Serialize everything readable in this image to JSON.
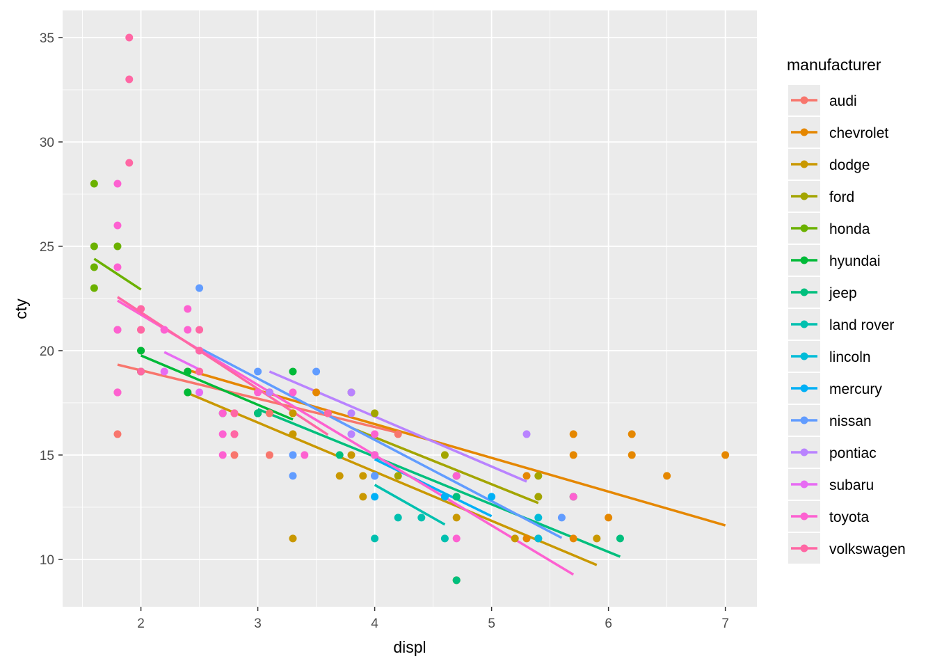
{
  "chart_data": {
    "type": "scatter",
    "title": "",
    "xlabel": "displ",
    "ylabel": "cty",
    "xlim": [
      1.33,
      7.27
    ],
    "ylim": [
      7.73,
      36.3
    ],
    "xticks": [
      2,
      3,
      4,
      5,
      6,
      7
    ],
    "yticks": [
      10,
      15,
      20,
      25,
      30,
      35
    ],
    "grid": true,
    "legend_title": "manufacturer",
    "legend_position": "right",
    "series": [
      {
        "name": "audi",
        "color": "#F8766D",
        "points": [
          [
            1.8,
            18
          ],
          [
            1.8,
            21
          ],
          [
            2.0,
            20
          ],
          [
            2.0,
            21
          ],
          [
            2.8,
            16
          ],
          [
            3.1,
            18
          ],
          [
            1.8,
            16
          ],
          [
            2.0,
            19
          ],
          [
            2.8,
            15
          ],
          [
            2.8,
            17
          ],
          [
            3.1,
            17
          ],
          [
            3.1,
            15
          ],
          [
            4.2,
            16
          ]
        ],
        "fit": [
          [
            1.8,
            19.33
          ],
          [
            4.2,
            16.07
          ]
        ]
      },
      {
        "name": "chevrolet",
        "color": "#E58700",
        "points": [
          [
            5.3,
            14
          ],
          [
            5.3,
            11
          ],
          [
            5.7,
            13
          ],
          [
            6.5,
            14
          ],
          [
            5.7,
            16
          ],
          [
            6.2,
            15
          ],
          [
            6.2,
            16
          ],
          [
            7.0,
            15
          ],
          [
            5.7,
            15
          ],
          [
            6.0,
            12
          ],
          [
            5.7,
            11
          ],
          [
            2.4,
            19
          ],
          [
            3.1,
            18
          ],
          [
            3.5,
            18
          ],
          [
            3.6,
            17
          ]
        ],
        "fit": [
          [
            2.4,
            19.07
          ],
          [
            7.0,
            11.63
          ]
        ]
      },
      {
        "name": "dodge",
        "color": "#C99800",
        "points": [
          [
            2.4,
            18
          ],
          [
            3.0,
            17
          ],
          [
            3.3,
            16
          ],
          [
            3.3,
            17
          ],
          [
            3.8,
            15
          ],
          [
            4.0,
            15
          ],
          [
            3.3,
            11
          ],
          [
            3.7,
            14
          ],
          [
            3.9,
            13
          ],
          [
            3.9,
            14
          ],
          [
            4.7,
            14
          ],
          [
            4.7,
            13
          ],
          [
            4.7,
            12
          ],
          [
            5.2,
            11
          ],
          [
            5.9,
            11
          ],
          [
            4.7,
            9
          ]
        ],
        "fit": [
          [
            2.4,
            17.97
          ],
          [
            5.9,
            9.73
          ]
        ]
      },
      {
        "name": "ford",
        "color": "#A3A500",
        "points": [
          [
            4.0,
            17
          ],
          [
            4.2,
            14
          ],
          [
            4.6,
            15
          ],
          [
            5.4,
            13
          ],
          [
            5.4,
            14
          ],
          [
            4.6,
            13
          ],
          [
            5.4,
            11
          ],
          [
            3.8,
            18
          ]
        ],
        "fit": [
          [
            3.8,
            16.3
          ],
          [
            5.4,
            12.7
          ]
        ]
      },
      {
        "name": "honda",
        "color": "#6BB100",
        "points": [
          [
            1.6,
            28
          ],
          [
            1.6,
            24
          ],
          [
            1.6,
            25
          ],
          [
            1.6,
            23
          ],
          [
            1.8,
            25
          ]
        ],
        "fit": [
          [
            1.6,
            24.4
          ],
          [
            2.0,
            22.93
          ]
        ]
      },
      {
        "name": "hyundai",
        "color": "#00BA38",
        "points": [
          [
            2.0,
            20
          ],
          [
            2.4,
            18
          ],
          [
            2.4,
            19
          ],
          [
            2.7,
            17
          ],
          [
            3.3,
            19
          ],
          [
            3.0,
            17
          ],
          [
            2.0,
            19
          ]
        ],
        "fit": [
          [
            2.0,
            19.77
          ],
          [
            3.3,
            16.7
          ]
        ]
      },
      {
        "name": "jeep",
        "color": "#00BF7D",
        "points": [
          [
            3.0,
            17
          ],
          [
            3.7,
            15
          ],
          [
            4.0,
            15
          ],
          [
            4.7,
            14
          ],
          [
            4.7,
            9
          ],
          [
            5.7,
            13
          ],
          [
            6.1,
            11
          ],
          [
            4.7,
            13
          ]
        ],
        "fit": [
          [
            3.0,
            17.2
          ],
          [
            6.1,
            10.13
          ]
        ]
      },
      {
        "name": "land rover",
        "color": "#00C0AF",
        "points": [
          [
            4.0,
            11
          ],
          [
            4.2,
            12
          ],
          [
            4.4,
            12
          ],
          [
            4.6,
            11
          ]
        ],
        "fit": [
          [
            4.0,
            13.57
          ],
          [
            4.6,
            11.67
          ]
        ]
      },
      {
        "name": "lincoln",
        "color": "#00BCD8",
        "points": [
          [
            5.4,
            11
          ],
          [
            5.4,
            12
          ]
        ],
        "fit": []
      },
      {
        "name": "mercury",
        "color": "#00B0F6",
        "points": [
          [
            4.0,
            14
          ],
          [
            4.0,
            13
          ],
          [
            4.6,
            13
          ],
          [
            5.0,
            13
          ]
        ],
        "fit": [
          [
            4.0,
            14.8
          ],
          [
            5.0,
            12.07
          ]
        ]
      },
      {
        "name": "nissan",
        "color": "#619CFF",
        "points": [
          [
            2.5,
            23
          ],
          [
            2.5,
            20
          ],
          [
            3.0,
            19
          ],
          [
            3.3,
            15
          ],
          [
            3.3,
            14
          ],
          [
            3.5,
            19
          ],
          [
            5.6,
            12
          ],
          [
            4.0,
            14
          ]
        ],
        "fit": [
          [
            2.5,
            20.13
          ],
          [
            5.6,
            11.03
          ]
        ]
      },
      {
        "name": "pontiac",
        "color": "#B983FF",
        "points": [
          [
            3.1,
            18
          ],
          [
            3.8,
            16
          ],
          [
            3.8,
            17
          ],
          [
            3.8,
            18
          ],
          [
            5.3,
            16
          ]
        ],
        "fit": [
          [
            3.1,
            19.0
          ],
          [
            5.3,
            13.73
          ]
        ]
      },
      {
        "name": "subaru",
        "color": "#E76BF3",
        "points": [
          [
            2.2,
            21
          ],
          [
            2.2,
            19
          ],
          [
            2.5,
            18
          ],
          [
            2.5,
            19
          ],
          [
            2.5,
            20
          ]
        ],
        "fit": [
          [
            2.2,
            19.93
          ],
          [
            2.5,
            19.1
          ]
        ]
      },
      {
        "name": "toyota",
        "color": "#FD61D1",
        "points": [
          [
            1.8,
            28
          ],
          [
            1.8,
            26
          ],
          [
            1.8,
            24
          ],
          [
            1.8,
            21
          ],
          [
            1.8,
            18
          ],
          [
            2.2,
            21
          ],
          [
            2.4,
            21
          ],
          [
            2.4,
            22
          ],
          [
            2.7,
            16
          ],
          [
            2.7,
            15
          ],
          [
            2.7,
            17
          ],
          [
            3.0,
            18
          ],
          [
            3.3,
            18
          ],
          [
            3.4,
            15
          ],
          [
            4.0,
            16
          ],
          [
            4.7,
            11
          ],
          [
            4.7,
            14
          ],
          [
            5.7,
            13
          ],
          [
            4.0,
            15
          ]
        ],
        "fit": [
          [
            1.8,
            22.4
          ],
          [
            5.7,
            9.27
          ]
        ]
      },
      {
        "name": "volkswagen",
        "color": "#FF67A4",
        "points": [
          [
            1.9,
            35
          ],
          [
            1.9,
            33
          ],
          [
            1.9,
            29
          ],
          [
            2.0,
            22
          ],
          [
            2.0,
            21
          ],
          [
            2.5,
            21
          ],
          [
            2.8,
            17
          ],
          [
            2.5,
            20
          ],
          [
            3.6,
            17
          ],
          [
            2.0,
            19
          ],
          [
            2.8,
            16
          ],
          [
            2.5,
            19
          ]
        ],
        "fit": [
          [
            1.8,
            22.57
          ],
          [
            3.6,
            15.97
          ]
        ]
      }
    ]
  }
}
